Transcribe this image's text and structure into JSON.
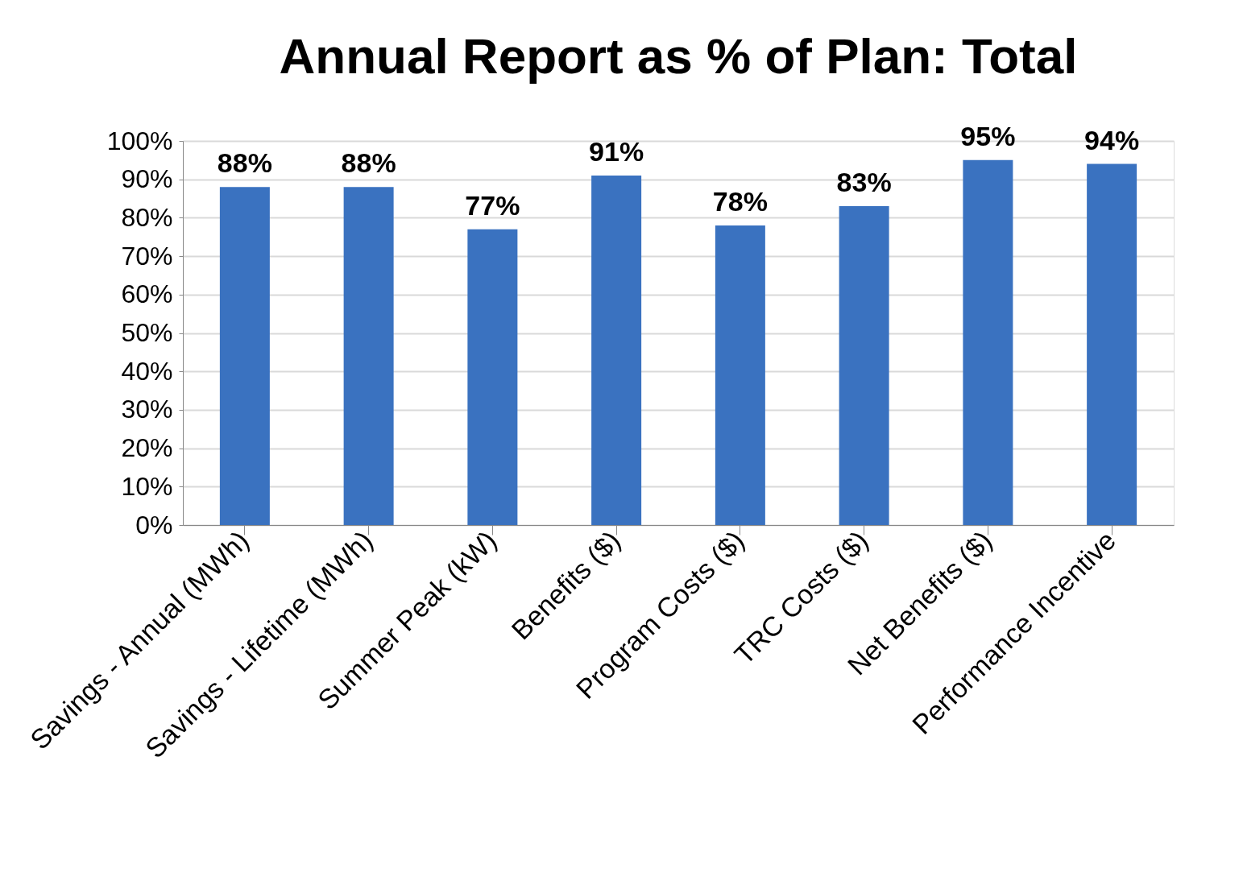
{
  "chart_data": {
    "type": "bar",
    "title": "Annual Report as % of Plan: Total",
    "categories": [
      "Savings - Annual (MWh)",
      "Savings - Lifetime (MWh)",
      "Summer Peak (kW)",
      "Benefits ($)",
      "Program Costs ($)",
      "TRC Costs ($)",
      "Net Benefits ($)",
      "Performance Incentive"
    ],
    "values": [
      88,
      88,
      77,
      91,
      78,
      83,
      95,
      94
    ],
    "value_labels": [
      "88%",
      "88%",
      "77%",
      "91%",
      "78%",
      "83%",
      "95%",
      "94%"
    ],
    "color": "#3a72c0",
    "ylim": [
      0,
      100
    ],
    "yticks": [
      {
        "value": 0,
        "label": "0%"
      },
      {
        "value": 10,
        "label": "10%"
      },
      {
        "value": 20,
        "label": "20%"
      },
      {
        "value": 30,
        "label": "30%"
      },
      {
        "value": 40,
        "label": "40%"
      },
      {
        "value": 50,
        "label": "50%"
      },
      {
        "value": 60,
        "label": "60%"
      },
      {
        "value": 70,
        "label": "70%"
      },
      {
        "value": 80,
        "label": "80%"
      },
      {
        "value": 90,
        "label": "90%"
      },
      {
        "value": 100,
        "label": "100%"
      }
    ],
    "grid": "y"
  }
}
